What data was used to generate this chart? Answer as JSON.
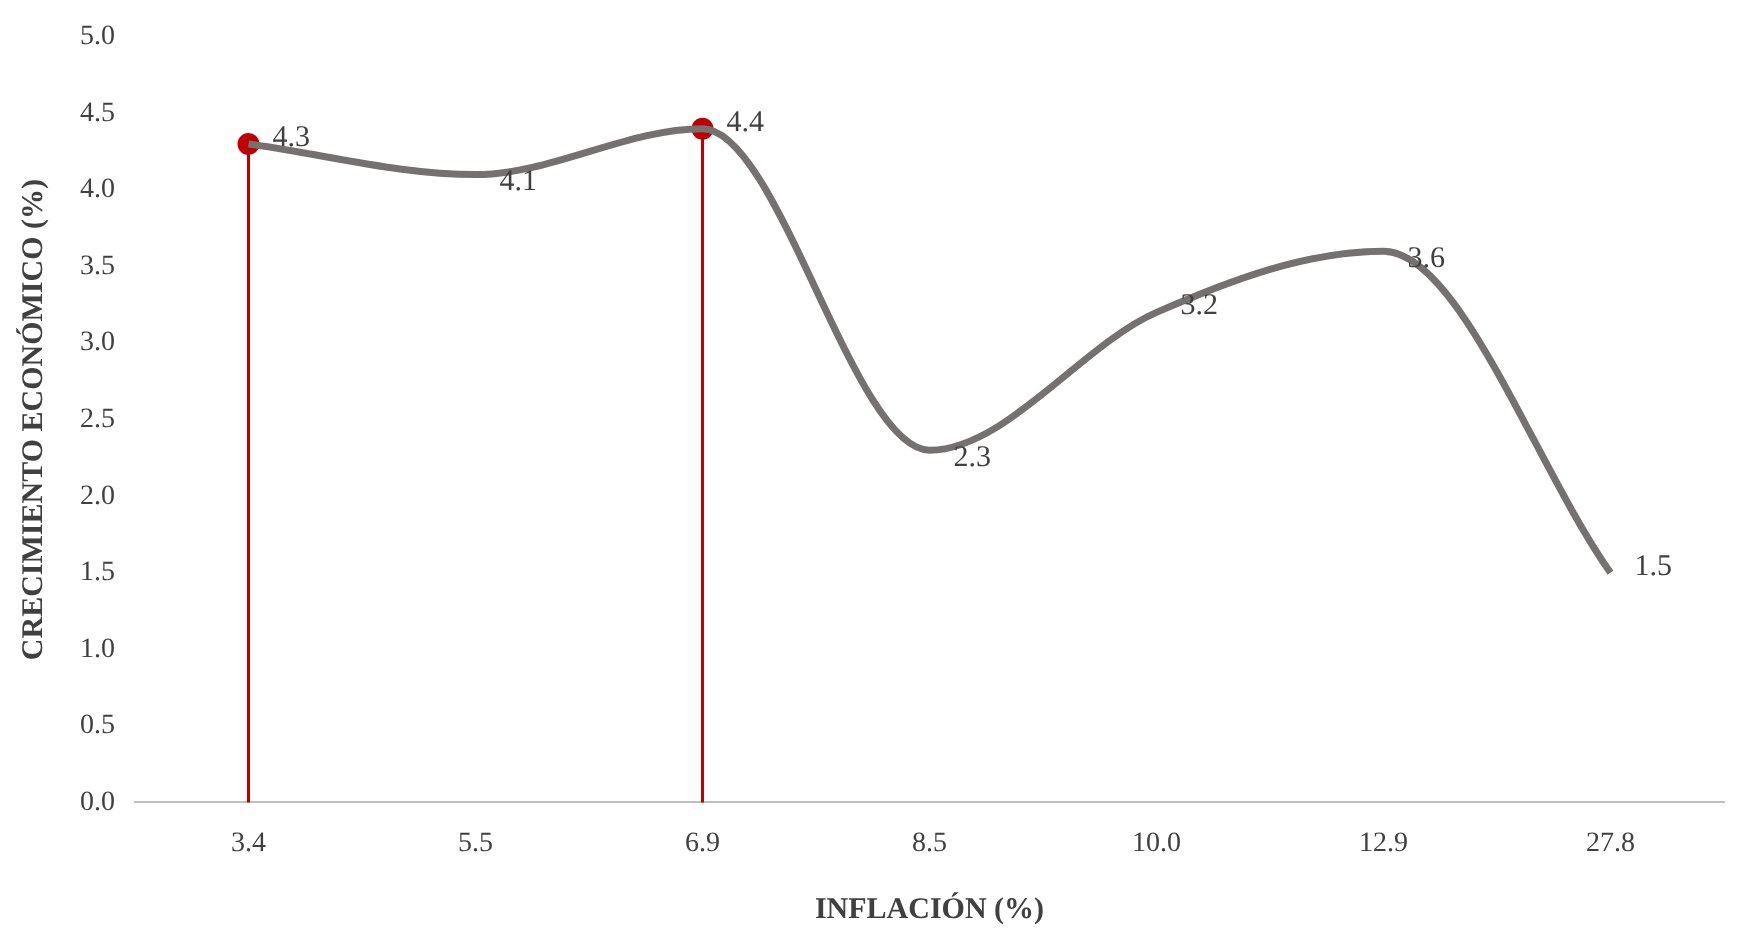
{
  "chart_data": {
    "type": "line",
    "xlabel": "INFLACIÓN (%)",
    "ylabel": "CRECIMIENTO ECONÓMICO (%)",
    "categories": [
      "3.4",
      "5.5",
      "6.9",
      "8.5",
      "10.0",
      "12.9",
      "27.8"
    ],
    "series": [
      {
        "color": "#767171",
        "marker": "none",
        "values": [
          4.3,
          4.1,
          4.4,
          2.3,
          3.2,
          3.6,
          1.5
        ],
        "value_labels": [
          "4.3",
          "4.1",
          "4.4",
          "2.3",
          "3.2",
          "3.6",
          "1.5"
        ]
      },
      {
        "type": "scatter",
        "color": "#c00000",
        "marker": "circle",
        "x": [
          "3.4",
          "6.9"
        ],
        "values": [
          4.3,
          4.4
        ]
      }
    ],
    "ylim": [
      0,
      5
    ],
    "yticks": [
      {
        "value": 0,
        "label": "0.0"
      },
      {
        "value": 0.5,
        "label": "0.5"
      },
      {
        "value": 1,
        "label": "1.0"
      },
      {
        "value": 1.5,
        "label": "1.5"
      },
      {
        "value": 2,
        "label": "2.0"
      },
      {
        "value": 2.5,
        "label": "2.5"
      },
      {
        "value": 3,
        "label": "3.0"
      },
      {
        "value": 3.5,
        "label": "3.5"
      },
      {
        "value": 4,
        "label": "4.0"
      },
      {
        "value": 4.5,
        "label": "4.5"
      },
      {
        "value": 5,
        "label": "5.0"
      }
    ],
    "ref_lines": [
      {
        "axis": "x",
        "value": "3.4",
        "color": "#c00000"
      },
      {
        "axis": "x",
        "value": "6.9",
        "color": "#c00000"
      }
    ],
    "grid": false,
    "legend": false
  }
}
